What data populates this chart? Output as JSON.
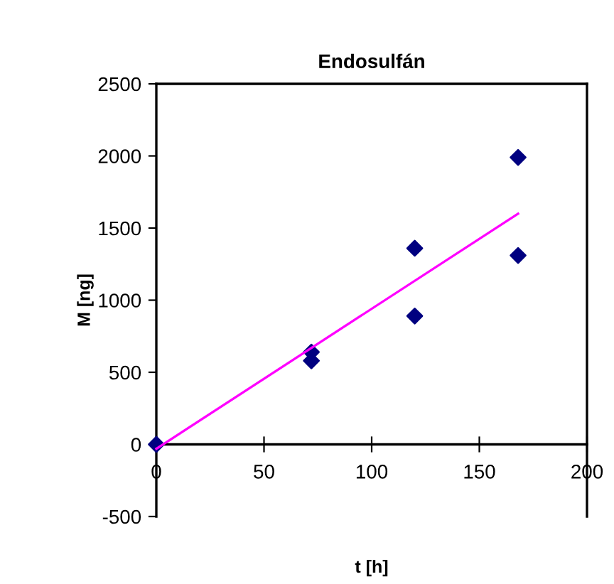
{
  "chart_data": {
    "type": "scatter",
    "title": "Endosulfán",
    "xlabel": "t [h]",
    "ylabel": "M [ng]",
    "series": [
      {
        "color": "#000080",
        "marker": "diamond",
        "x": [
          0,
          72,
          72,
          120,
          120,
          168,
          168
        ],
        "values": [
          0,
          640,
          580,
          1360,
          890,
          1990,
          1310
        ]
      },
      {
        "type": "line",
        "color": "#ff00ff",
        "marker": "none",
        "x": [
          0,
          168
        ],
        "values": [
          -30,
          1600
        ]
      }
    ],
    "xlim": [
      0,
      200
    ],
    "xticks": [
      0,
      50,
      100,
      150,
      200
    ],
    "ylim": [
      -500,
      2500
    ],
    "yticks": [
      -500,
      0,
      500,
      1000,
      1500,
      2000,
      2500
    ],
    "grid": false,
    "legend": false
  }
}
